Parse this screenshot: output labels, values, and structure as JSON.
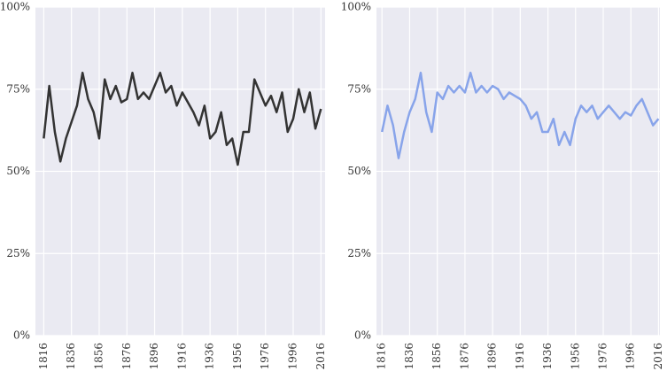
{
  "chart_data": [
    {
      "type": "line",
      "color": "#333333",
      "x": [
        1816,
        1820,
        1824,
        1828,
        1832,
        1836,
        1840,
        1844,
        1848,
        1852,
        1856,
        1860,
        1864,
        1868,
        1872,
        1876,
        1880,
        1884,
        1888,
        1892,
        1896,
        1900,
        1904,
        1908,
        1912,
        1916,
        1920,
        1924,
        1928,
        1932,
        1936,
        1940,
        1944,
        1948,
        1952,
        1956,
        1960,
        1964,
        1968,
        1972,
        1976,
        1980,
        1984,
        1988,
        1992,
        1996,
        2000,
        2004,
        2008,
        2012,
        2016
      ],
      "values": [
        60,
        76,
        62,
        53,
        60,
        65,
        70,
        80,
        72,
        68,
        60,
        78,
        72,
        76,
        71,
        72,
        80,
        72,
        74,
        72,
        76,
        80,
        74,
        76,
        70,
        74,
        71,
        68,
        64,
        70,
        60,
        62,
        68,
        58,
        60,
        52,
        62,
        62,
        78,
        74,
        70,
        73,
        68,
        74,
        62,
        66,
        75,
        68,
        74,
        63,
        69
      ],
      "xlim": [
        1810,
        2019
      ],
      "ylim": [
        0,
        100
      ],
      "xticks": [
        1816,
        1836,
        1856,
        1876,
        1896,
        1916,
        1936,
        1956,
        1976,
        1996,
        2016
      ],
      "yticks": [
        {
          "value": 0,
          "label": "0%"
        },
        {
          "value": 25,
          "label": "25%"
        },
        {
          "value": 50,
          "label": "50%"
        },
        {
          "value": 75,
          "label": "75%"
        },
        {
          "value": 100,
          "label": "100%"
        }
      ],
      "grid": true
    },
    {
      "type": "line",
      "color": "#88a4ea",
      "x": [
        1816,
        1820,
        1824,
        1828,
        1832,
        1836,
        1840,
        1844,
        1848,
        1852,
        1856,
        1860,
        1864,
        1868,
        1872,
        1876,
        1880,
        1884,
        1888,
        1892,
        1896,
        1900,
        1904,
        1908,
        1912,
        1916,
        1920,
        1924,
        1928,
        1932,
        1936,
        1940,
        1944,
        1948,
        1952,
        1956,
        1960,
        1964,
        1968,
        1972,
        1976,
        1980,
        1984,
        1988,
        1992,
        1996,
        2000,
        2004,
        2008,
        2012,
        2016
      ],
      "values": [
        62,
        70,
        64,
        54,
        62,
        68,
        72,
        80,
        68,
        62,
        74,
        72,
        76,
        74,
        76,
        74,
        80,
        74,
        76,
        74,
        76,
        75,
        72,
        74,
        73,
        72,
        70,
        66,
        68,
        62,
        62,
        66,
        58,
        62,
        58,
        66,
        70,
        68,
        70,
        66,
        68,
        70,
        68,
        66,
        68,
        67,
        70,
        72,
        68,
        64,
        66
      ],
      "xlim": [
        1812,
        2017
      ],
      "ylim": [
        0,
        100
      ],
      "xticks": [
        1816,
        1836,
        1856,
        1876,
        1896,
        1916,
        1936,
        1956,
        1976,
        1996,
        2016
      ],
      "yticks": [
        {
          "value": 0,
          "label": "0%"
        },
        {
          "value": 25,
          "label": "25%"
        },
        {
          "value": 50,
          "label": "50%"
        },
        {
          "value": 75,
          "label": "75%"
        },
        {
          "value": 100,
          "label": "100%"
        }
      ],
      "grid": true
    }
  ]
}
